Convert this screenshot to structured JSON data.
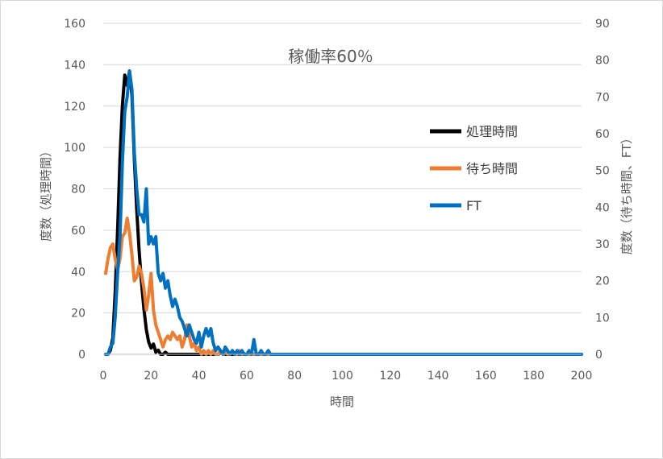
{
  "chart_data": {
    "type": "line",
    "title": "稼働率60％",
    "xlabel": "時間",
    "ylabel_left": "度数（処理時間）",
    "ylabel_right": "度数（待ち時間、FT）",
    "xlim": [
      0,
      200
    ],
    "ylim_left": [
      0,
      160
    ],
    "ylim_right": [
      0,
      90
    ],
    "x_ticks": [
      0,
      20,
      40,
      60,
      80,
      100,
      120,
      140,
      160,
      180,
      200
    ],
    "y_left_ticks": [
      0,
      20,
      40,
      60,
      80,
      100,
      120,
      140,
      160
    ],
    "y_right_ticks": [
      0,
      10,
      20,
      30,
      40,
      50,
      60,
      70,
      80,
      90
    ],
    "grid": "horizontal",
    "legend_position": "right",
    "series": [
      {
        "name": "処理時間",
        "axis": "left",
        "color": "#000000",
        "points": [
          [
            1,
            0
          ],
          [
            2,
            0
          ],
          [
            3,
            2
          ],
          [
            4,
            8
          ],
          [
            5,
            30
          ],
          [
            6,
            60
          ],
          [
            7,
            95
          ],
          [
            8,
            120
          ],
          [
            9,
            135
          ],
          [
            10,
            130
          ],
          [
            11,
            137
          ],
          [
            12,
            125
          ],
          [
            13,
            95
          ],
          [
            14,
            70
          ],
          [
            15,
            50
          ],
          [
            16,
            35
          ],
          [
            17,
            22
          ],
          [
            18,
            12
          ],
          [
            19,
            6
          ],
          [
            20,
            3
          ],
          [
            21,
            5
          ],
          [
            22,
            1
          ],
          [
            23,
            2
          ],
          [
            24,
            0
          ],
          [
            25,
            0
          ],
          [
            26,
            1
          ],
          [
            27,
            0
          ],
          [
            28,
            0
          ],
          [
            30,
            0
          ],
          [
            35,
            0
          ],
          [
            40,
            0
          ],
          [
            45,
            0
          ],
          [
            48,
            0
          ],
          [
            50,
            1
          ],
          [
            51,
            0
          ],
          [
            52,
            0
          ],
          [
            60,
            0
          ]
        ]
      },
      {
        "name": "待ち時間",
        "axis": "right",
        "color": "#ed7d31",
        "points": [
          [
            1,
            22
          ],
          [
            2,
            26
          ],
          [
            3,
            29
          ],
          [
            4,
            30
          ],
          [
            5,
            26
          ],
          [
            6,
            23
          ],
          [
            7,
            26
          ],
          [
            8,
            32
          ],
          [
            9,
            33
          ],
          [
            10,
            37
          ],
          [
            11,
            33
          ],
          [
            12,
            27
          ],
          [
            13,
            20
          ],
          [
            14,
            21
          ],
          [
            15,
            24
          ],
          [
            16,
            22
          ],
          [
            17,
            18
          ],
          [
            18,
            12
          ],
          [
            19,
            16
          ],
          [
            20,
            22
          ],
          [
            21,
            12
          ],
          [
            22,
            8
          ],
          [
            23,
            6
          ],
          [
            24,
            4
          ],
          [
            25,
            2
          ],
          [
            26,
            4
          ],
          [
            27,
            5
          ],
          [
            28,
            4
          ],
          [
            29,
            6
          ],
          [
            30,
            5
          ],
          [
            31,
            4
          ],
          [
            32,
            5
          ],
          [
            33,
            2
          ],
          [
            34,
            4
          ],
          [
            35,
            8
          ],
          [
            36,
            5
          ],
          [
            37,
            2
          ],
          [
            38,
            3
          ],
          [
            39,
            1
          ],
          [
            40,
            2
          ],
          [
            41,
            0
          ],
          [
            42,
            1
          ],
          [
            43,
            0
          ],
          [
            44,
            1
          ],
          [
            45,
            0
          ],
          [
            46,
            1
          ],
          [
            47,
            0
          ],
          [
            48,
            0
          ],
          [
            49,
            1
          ],
          [
            50,
            0
          ],
          [
            51,
            1
          ],
          [
            52,
            0
          ],
          [
            53,
            0
          ],
          [
            54,
            1
          ],
          [
            55,
            0
          ],
          [
            56,
            0
          ],
          [
            57,
            1
          ],
          [
            58,
            0
          ],
          [
            60,
            0
          ],
          [
            65,
            0
          ],
          [
            70,
            0
          ]
        ]
      },
      {
        "name": "FT",
        "axis": "right",
        "color": "#0070c0",
        "points": [
          [
            1,
            0
          ],
          [
            2,
            0
          ],
          [
            3,
            2
          ],
          [
            4,
            3
          ],
          [
            5,
            10
          ],
          [
            6,
            22
          ],
          [
            7,
            32
          ],
          [
            8,
            52
          ],
          [
            9,
            66
          ],
          [
            10,
            70
          ],
          [
            11,
            77
          ],
          [
            12,
            72
          ],
          [
            13,
            55
          ],
          [
            14,
            45
          ],
          [
            15,
            38
          ],
          [
            16,
            38
          ],
          [
            17,
            36
          ],
          [
            18,
            45
          ],
          [
            19,
            30
          ],
          [
            20,
            32
          ],
          [
            21,
            30
          ],
          [
            22,
            32
          ],
          [
            23,
            22
          ],
          [
            24,
            20
          ],
          [
            25,
            22
          ],
          [
            26,
            18
          ],
          [
            27,
            20
          ],
          [
            28,
            16
          ],
          [
            29,
            13
          ],
          [
            30,
            15
          ],
          [
            31,
            13
          ],
          [
            32,
            10
          ],
          [
            33,
            9
          ],
          [
            34,
            7
          ],
          [
            35,
            5
          ],
          [
            36,
            8
          ],
          [
            37,
            6
          ],
          [
            38,
            4
          ],
          [
            39,
            3
          ],
          [
            40,
            6
          ],
          [
            41,
            2
          ],
          [
            42,
            5
          ],
          [
            43,
            7
          ],
          [
            44,
            5
          ],
          [
            45,
            7
          ],
          [
            46,
            3
          ],
          [
            47,
            1
          ],
          [
            48,
            2
          ],
          [
            49,
            1
          ],
          [
            50,
            0
          ],
          [
            51,
            2
          ],
          [
            52,
            1
          ],
          [
            53,
            0
          ],
          [
            54,
            1
          ],
          [
            55,
            0
          ],
          [
            56,
            1
          ],
          [
            57,
            0
          ],
          [
            58,
            1
          ],
          [
            59,
            0
          ],
          [
            60,
            0
          ],
          [
            61,
            1
          ],
          [
            62,
            0
          ],
          [
            63,
            4
          ],
          [
            64,
            0
          ],
          [
            65,
            0
          ],
          [
            66,
            1
          ],
          [
            67,
            0
          ],
          [
            68,
            0
          ],
          [
            69,
            1
          ],
          [
            70,
            0
          ],
          [
            75,
            0
          ],
          [
            80,
            0
          ],
          [
            100,
            0
          ],
          [
            150,
            0
          ],
          [
            200,
            0
          ]
        ]
      }
    ]
  }
}
